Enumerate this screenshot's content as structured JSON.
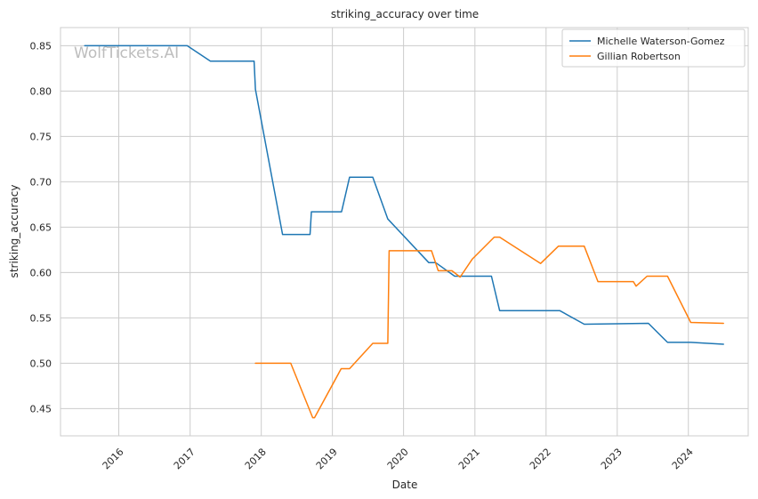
{
  "chart_data": {
    "type": "line",
    "title": "striking_accuracy over time",
    "xlabel": "Date",
    "ylabel": "striking_accuracy",
    "watermark": "WolfTickets.AI",
    "xlim": [
      "2015-03-08",
      "2024-11-03"
    ],
    "ylim": [
      0.42,
      0.87
    ],
    "x_ticks": [
      {
        "date": "2016-01-01",
        "label": "2016"
      },
      {
        "date": "2017-01-01",
        "label": "2017"
      },
      {
        "date": "2018-01-01",
        "label": "2018"
      },
      {
        "date": "2019-01-01",
        "label": "2019"
      },
      {
        "date": "2020-01-01",
        "label": "2020"
      },
      {
        "date": "2021-01-01",
        "label": "2021"
      },
      {
        "date": "2022-01-01",
        "label": "2022"
      },
      {
        "date": "2023-01-01",
        "label": "2023"
      },
      {
        "date": "2024-01-01",
        "label": "2024"
      }
    ],
    "y_ticks": [
      {
        "value": 0.45,
        "label": "0.45"
      },
      {
        "value": 0.5,
        "label": "0.50"
      },
      {
        "value": 0.55,
        "label": "0.55"
      },
      {
        "value": 0.6,
        "label": "0.60"
      },
      {
        "value": 0.65,
        "label": "0.65"
      },
      {
        "value": 0.7,
        "label": "0.70"
      },
      {
        "value": 0.75,
        "label": "0.75"
      },
      {
        "value": 0.8,
        "label": "0.80"
      },
      {
        "value": 0.85,
        "label": "0.85"
      }
    ],
    "grid": true,
    "legend_position": "top-right",
    "series": [
      {
        "name": "Michelle Waterson-Gomez",
        "color": "#1f77b4",
        "points": [
          {
            "x": "2015-07-10",
            "y": 0.85
          },
          {
            "x": "2016-12-17",
            "y": 0.85
          },
          {
            "x": "2017-04-15",
            "y": 0.833
          },
          {
            "x": "2017-11-25",
            "y": 0.833
          },
          {
            "x": "2017-12-02",
            "y": 0.802
          },
          {
            "x": "2018-04-20",
            "y": 0.642
          },
          {
            "x": "2018-09-08",
            "y": 0.642
          },
          {
            "x": "2018-09-15",
            "y": 0.667
          },
          {
            "x": "2019-02-17",
            "y": 0.667
          },
          {
            "x": "2019-03-30",
            "y": 0.705
          },
          {
            "x": "2019-07-27",
            "y": 0.705
          },
          {
            "x": "2019-10-12",
            "y": 0.659
          },
          {
            "x": "2020-05-09",
            "y": 0.611
          },
          {
            "x": "2020-06-13",
            "y": 0.611
          },
          {
            "x": "2020-09-19",
            "y": 0.596
          },
          {
            "x": "2021-03-27",
            "y": 0.596
          },
          {
            "x": "2021-05-08",
            "y": 0.558
          },
          {
            "x": "2022-03-12",
            "y": 0.558
          },
          {
            "x": "2022-07-16",
            "y": 0.543
          },
          {
            "x": "2023-06-10",
            "y": 0.544
          },
          {
            "x": "2023-09-16",
            "y": 0.523
          },
          {
            "x": "2024-01-13",
            "y": 0.523
          },
          {
            "x": "2024-06-29",
            "y": 0.521
          }
        ]
      },
      {
        "name": "Gillian Robertson",
        "color": "#ff7f0e",
        "points": [
          {
            "x": "2017-12-02",
            "y": 0.5
          },
          {
            "x": "2018-06-01",
            "y": 0.5
          },
          {
            "x": "2018-09-22",
            "y": 0.44
          },
          {
            "x": "2018-10-01",
            "y": 0.44
          },
          {
            "x": "2019-02-15",
            "y": 0.494
          },
          {
            "x": "2019-03-30",
            "y": 0.494
          },
          {
            "x": "2019-07-27",
            "y": 0.522
          },
          {
            "x": "2019-10-12",
            "y": 0.522
          },
          {
            "x": "2019-10-19",
            "y": 0.624
          },
          {
            "x": "2020-05-23",
            "y": 0.624
          },
          {
            "x": "2020-06-27",
            "y": 0.602
          },
          {
            "x": "2020-09-05",
            "y": 0.602
          },
          {
            "x": "2020-10-17",
            "y": 0.595
          },
          {
            "x": "2020-12-19",
            "y": 0.615
          },
          {
            "x": "2021-04-10",
            "y": 0.639
          },
          {
            "x": "2021-05-08",
            "y": 0.639
          },
          {
            "x": "2021-12-04",
            "y": 0.61
          },
          {
            "x": "2022-03-05",
            "y": 0.629
          },
          {
            "x": "2022-07-16",
            "y": 0.629
          },
          {
            "x": "2022-09-24",
            "y": 0.59
          },
          {
            "x": "2023-03-25",
            "y": 0.59
          },
          {
            "x": "2023-04-08",
            "y": 0.585
          },
          {
            "x": "2023-06-03",
            "y": 0.596
          },
          {
            "x": "2023-09-16",
            "y": 0.596
          },
          {
            "x": "2024-01-13",
            "y": 0.545
          },
          {
            "x": "2024-06-29",
            "y": 0.544
          }
        ]
      }
    ]
  }
}
